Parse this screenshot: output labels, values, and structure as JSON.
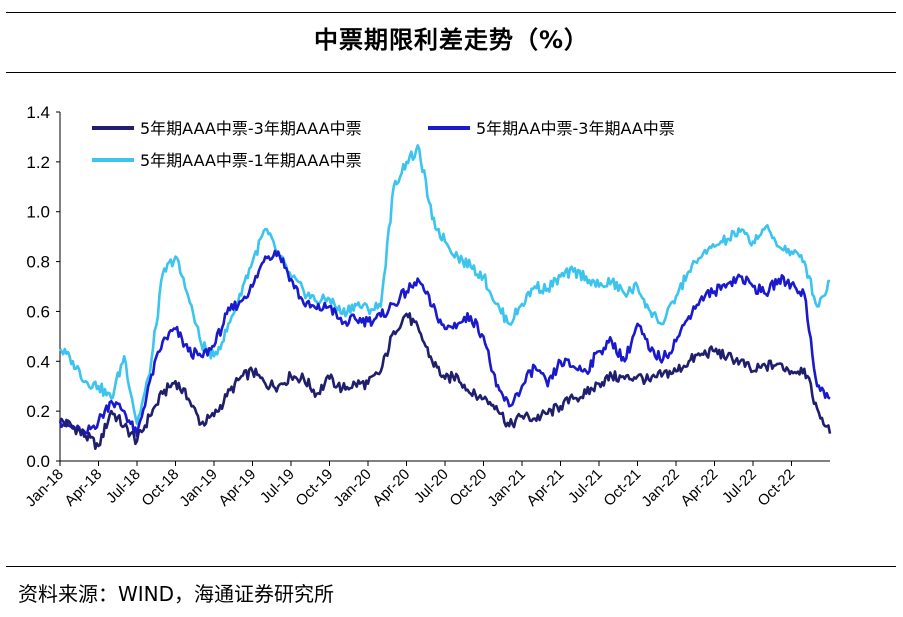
{
  "title": "中票期限利差走势（%）",
  "source": "资料来源：WIND，海通证券研究所",
  "chart_data": {
    "type": "line",
    "title": "中票期限利差走势（%）",
    "xlabel": "",
    "ylabel": "",
    "ylim": [
      0,
      1.4
    ],
    "yticks": [
      "0.0",
      "0.2",
      "0.4",
      "0.6",
      "0.8",
      "1.0",
      "1.2",
      "1.4"
    ],
    "xticks": [
      "Jan-18",
      "Apr-18",
      "Jul-18",
      "Oct-18",
      "Jan-19",
      "Apr-19",
      "Jul-19",
      "Oct-19",
      "Jan-20",
      "Apr-20",
      "Jul-20",
      "Oct-20",
      "Jan-21",
      "Apr-21",
      "Jul-21",
      "Oct-21",
      "Jan-22",
      "Apr-22",
      "Jul-22",
      "Oct-22"
    ],
    "grid": false,
    "legend": "top-left, inside plot",
    "series": [
      {
        "name": "5年期AAA中票-3年期AAA中票",
        "color": "#1f1f6e",
        "points": [
          [
            "Jan-18",
            0.16
          ],
          [
            "Feb-18",
            0.14
          ],
          [
            "Mar-18",
            0.1
          ],
          [
            "Apr-18",
            0.06
          ],
          [
            "May-18",
            0.2
          ],
          [
            "Jun-18",
            0.14
          ],
          [
            "Jul-18",
            0.08
          ],
          [
            "Aug-18",
            0.18
          ],
          [
            "Sep-18",
            0.27
          ],
          [
            "Oct-18",
            0.32
          ],
          [
            "Nov-18",
            0.25
          ],
          [
            "Dec-18",
            0.15
          ],
          [
            "Jan-19",
            0.18
          ],
          [
            "Feb-19",
            0.26
          ],
          [
            "Mar-19",
            0.33
          ],
          [
            "Apr-19",
            0.36
          ],
          [
            "May-19",
            0.31
          ],
          [
            "Jun-19",
            0.3
          ],
          [
            "Jul-19",
            0.34
          ],
          [
            "Aug-19",
            0.33
          ],
          [
            "Sep-19",
            0.27
          ],
          [
            "Oct-19",
            0.33
          ],
          [
            "Nov-19",
            0.29
          ],
          [
            "Dec-19",
            0.31
          ],
          [
            "Jan-20",
            0.31
          ],
          [
            "Feb-20",
            0.36
          ],
          [
            "Mar-20",
            0.52
          ],
          [
            "Apr-20",
            0.59
          ],
          [
            "May-20",
            0.52
          ],
          [
            "Jun-20",
            0.4
          ],
          [
            "Jul-20",
            0.33
          ],
          [
            "Aug-20",
            0.34
          ],
          [
            "Sep-20",
            0.27
          ],
          [
            "Oct-20",
            0.25
          ],
          [
            "Nov-20",
            0.22
          ],
          [
            "Dec-20",
            0.14
          ],
          [
            "Jan-21",
            0.18
          ],
          [
            "Feb-21",
            0.17
          ],
          [
            "Mar-21",
            0.19
          ],
          [
            "Apr-21",
            0.22
          ],
          [
            "May-21",
            0.25
          ],
          [
            "Jun-21",
            0.27
          ],
          [
            "Jul-21",
            0.31
          ],
          [
            "Aug-21",
            0.34
          ],
          [
            "Sep-21",
            0.33
          ],
          [
            "Oct-21",
            0.34
          ],
          [
            "Nov-21",
            0.32
          ],
          [
            "Dec-21",
            0.35
          ],
          [
            "Jan-22",
            0.36
          ],
          [
            "Feb-22",
            0.4
          ],
          [
            "Mar-22",
            0.43
          ],
          [
            "Apr-22",
            0.44
          ],
          [
            "May-22",
            0.42
          ],
          [
            "Jun-22",
            0.4
          ],
          [
            "Jul-22",
            0.36
          ],
          [
            "Aug-22",
            0.38
          ],
          [
            "Sep-22",
            0.39
          ],
          [
            "Oct-22",
            0.36
          ],
          [
            "Nov-22",
            0.37
          ],
          [
            "Dec-22",
            0.21
          ],
          [
            "Dec-22b",
            0.11
          ]
        ]
      },
      {
        "name": "5年期AA中票-3年期AA中票",
        "color": "#1a1acc",
        "points": [
          [
            "Jan-18",
            0.16
          ],
          [
            "Feb-18",
            0.13
          ],
          [
            "Mar-18",
            0.11
          ],
          [
            "Apr-18",
            0.16
          ],
          [
            "May-18",
            0.24
          ],
          [
            "Jun-18",
            0.2
          ],
          [
            "Jul-18",
            0.1
          ],
          [
            "Aug-18",
            0.32
          ],
          [
            "Sep-18",
            0.48
          ],
          [
            "Oct-18",
            0.53
          ],
          [
            "Nov-18",
            0.44
          ],
          [
            "Dec-18",
            0.42
          ],
          [
            "Jan-19",
            0.46
          ],
          [
            "Feb-19",
            0.59
          ],
          [
            "Mar-19",
            0.64
          ],
          [
            "Apr-19",
            0.7
          ],
          [
            "May-19",
            0.82
          ],
          [
            "Jun-19",
            0.84
          ],
          [
            "Jul-19",
            0.73
          ],
          [
            "Aug-19",
            0.63
          ],
          [
            "Sep-19",
            0.61
          ],
          [
            "Oct-19",
            0.62
          ],
          [
            "Nov-19",
            0.55
          ],
          [
            "Dec-19",
            0.57
          ],
          [
            "Jan-20",
            0.56
          ],
          [
            "Feb-20",
            0.58
          ],
          [
            "Mar-20",
            0.63
          ],
          [
            "Apr-20",
            0.68
          ],
          [
            "May-20",
            0.72
          ],
          [
            "Jun-20",
            0.62
          ],
          [
            "Jul-20",
            0.53
          ],
          [
            "Aug-20",
            0.55
          ],
          [
            "Sep-20",
            0.58
          ],
          [
            "Oct-20",
            0.5
          ],
          [
            "Nov-20",
            0.3
          ],
          [
            "Dec-20",
            0.22
          ],
          [
            "Jan-21",
            0.3
          ],
          [
            "Feb-21",
            0.38
          ],
          [
            "Mar-21",
            0.3
          ],
          [
            "Apr-21",
            0.4
          ],
          [
            "May-21",
            0.38
          ],
          [
            "Jun-21",
            0.36
          ],
          [
            "Jul-21",
            0.44
          ],
          [
            "Aug-21",
            0.48
          ],
          [
            "Sep-21",
            0.4
          ],
          [
            "Oct-21",
            0.55
          ],
          [
            "Nov-21",
            0.44
          ],
          [
            "Dec-21",
            0.41
          ],
          [
            "Jan-22",
            0.48
          ],
          [
            "Feb-22",
            0.58
          ],
          [
            "Mar-22",
            0.66
          ],
          [
            "Apr-22",
            0.68
          ],
          [
            "May-22",
            0.71
          ],
          [
            "Jun-22",
            0.74
          ],
          [
            "Jul-22",
            0.7
          ],
          [
            "Aug-22",
            0.67
          ],
          [
            "Sep-22",
            0.73
          ],
          [
            "Oct-22",
            0.71
          ],
          [
            "Nov-22",
            0.67
          ],
          [
            "Dec-22",
            0.3
          ],
          [
            "Dec-22b",
            0.25
          ]
        ]
      },
      {
        "name": "5年期AAA中票-1年期AAA中票",
        "color": "#3cc4ee",
        "points": [
          [
            "Jan-18",
            0.45
          ],
          [
            "Feb-18",
            0.4
          ],
          [
            "Mar-18",
            0.32
          ],
          [
            "Apr-18",
            0.3
          ],
          [
            "May-18",
            0.25
          ],
          [
            "Jun-18",
            0.42
          ],
          [
            "Jul-18",
            0.15
          ],
          [
            "Aug-18",
            0.35
          ],
          [
            "Sep-18",
            0.75
          ],
          [
            "Oct-18",
            0.82
          ],
          [
            "Nov-18",
            0.66
          ],
          [
            "Dec-18",
            0.47
          ],
          [
            "Jan-19",
            0.42
          ],
          [
            "Feb-19",
            0.52
          ],
          [
            "Mar-19",
            0.67
          ],
          [
            "Apr-19",
            0.8
          ],
          [
            "May-19",
            0.93
          ],
          [
            "Jun-19",
            0.83
          ],
          [
            "Jul-19",
            0.74
          ],
          [
            "Aug-19",
            0.68
          ],
          [
            "Sep-19",
            0.64
          ],
          [
            "Oct-19",
            0.65
          ],
          [
            "Nov-19",
            0.59
          ],
          [
            "Dec-19",
            0.63
          ],
          [
            "Jan-20",
            0.61
          ],
          [
            "Feb-20",
            0.62
          ],
          [
            "Mar-20",
            1.1
          ],
          [
            "Apr-20",
            1.2
          ],
          [
            "May-20",
            1.25
          ],
          [
            "Jun-20",
            0.97
          ],
          [
            "Jul-20",
            0.88
          ],
          [
            "Aug-20",
            0.82
          ],
          [
            "Sep-20",
            0.78
          ],
          [
            "Oct-20",
            0.74
          ],
          [
            "Nov-20",
            0.63
          ],
          [
            "Dec-20",
            0.55
          ],
          [
            "Jan-21",
            0.63
          ],
          [
            "Feb-21",
            0.7
          ],
          [
            "Mar-21",
            0.69
          ],
          [
            "Apr-21",
            0.74
          ],
          [
            "May-21",
            0.76
          ],
          [
            "Jun-21",
            0.74
          ],
          [
            "Jul-21",
            0.7
          ],
          [
            "Aug-21",
            0.72
          ],
          [
            "Sep-21",
            0.67
          ],
          [
            "Oct-21",
            0.7
          ],
          [
            "Nov-21",
            0.6
          ],
          [
            "Dec-21",
            0.55
          ],
          [
            "Jan-22",
            0.66
          ],
          [
            "Feb-22",
            0.76
          ],
          [
            "Mar-22",
            0.82
          ],
          [
            "Apr-22",
            0.86
          ],
          [
            "May-22",
            0.89
          ],
          [
            "Jun-22",
            0.92
          ],
          [
            "Jul-22",
            0.88
          ],
          [
            "Aug-22",
            0.94
          ],
          [
            "Sep-22",
            0.86
          ],
          [
            "Oct-22",
            0.84
          ],
          [
            "Nov-22",
            0.8
          ],
          [
            "Dec-22",
            0.62
          ],
          [
            "Dec-22b",
            0.72
          ]
        ]
      }
    ]
  }
}
